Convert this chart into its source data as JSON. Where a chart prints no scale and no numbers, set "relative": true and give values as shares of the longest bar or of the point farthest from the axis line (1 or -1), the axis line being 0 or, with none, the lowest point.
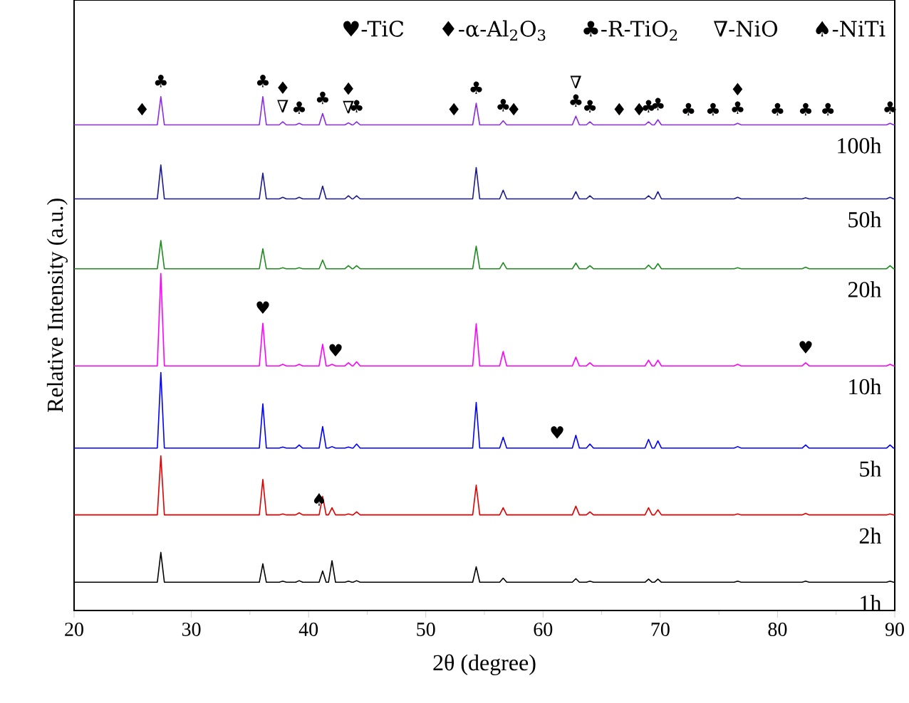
{
  "chart_data": {
    "type": "line",
    "relative": true,
    "marker": "none",
    "xlabel": "2θ (degree)",
    "ylabel": "Relative Intensity (a.u.)",
    "xlim": [
      20,
      90
    ],
    "xticks": [
      20,
      30,
      40,
      50,
      60,
      70,
      80,
      90
    ],
    "x": [
      20,
      27.1,
      27.4,
      27.7,
      35.8,
      36.1,
      36.4,
      37.5,
      37.8,
      38.1,
      38.9,
      39.2,
      39.5,
      40.9,
      41.2,
      41.5,
      41.7,
      42.0,
      42.3,
      43.1,
      43.4,
      43.7,
      43.8,
      44.1,
      44.4,
      54.0,
      54.3,
      54.6,
      56.3,
      56.6,
      56.9,
      62.5,
      62.8,
      63.1,
      63.7,
      64.0,
      64.3,
      68.7,
      69.0,
      69.3,
      69.5,
      69.8,
      70.1,
      76.3,
      76.6,
      76.9,
      82.1,
      82.4,
      82.7,
      89.3,
      89.6,
      89.9,
      90
    ],
    "series": [
      {
        "name": "100h",
        "color": "#8a2be2",
        "values": [
          0.945,
          0.945,
          1.0,
          0.945,
          0.945,
          1.0,
          0.945,
          0.945,
          0.951,
          0.945,
          0.945,
          0.948,
          0.945,
          0.945,
          0.967,
          0.945,
          0.945,
          0.945,
          0.945,
          0.945,
          0.949,
          0.945,
          0.945,
          0.951,
          0.945,
          0.945,
          0.987,
          0.945,
          0.945,
          0.953,
          0.945,
          0.945,
          0.962,
          0.945,
          0.945,
          0.951,
          0.945,
          0.945,
          0.951,
          0.945,
          0.945,
          0.955,
          0.945,
          0.945,
          0.948,
          0.945,
          0.945,
          0.945,
          0.945,
          0.945,
          0.948,
          0.945,
          0.945
        ]
      },
      {
        "name": "50h",
        "color": "#1a1a8c",
        "values": [
          0.801,
          0.801,
          0.867,
          0.801,
          0.801,
          0.851,
          0.801,
          0.801,
          0.804,
          0.801,
          0.801,
          0.804,
          0.801,
          0.801,
          0.826,
          0.801,
          0.801,
          0.801,
          0.801,
          0.801,
          0.807,
          0.801,
          0.801,
          0.807,
          0.801,
          0.801,
          0.862,
          0.801,
          0.801,
          0.818,
          0.801,
          0.801,
          0.815,
          0.801,
          0.801,
          0.807,
          0.801,
          0.801,
          0.807,
          0.801,
          0.801,
          0.815,
          0.801,
          0.801,
          0.804,
          0.801,
          0.801,
          0.803,
          0.801,
          0.801,
          0.804,
          0.801,
          0.801
        ]
      },
      {
        "name": "20h",
        "color": "#1e8b1e",
        "values": [
          0.665,
          0.665,
          0.72,
          0.665,
          0.665,
          0.704,
          0.665,
          0.665,
          0.667,
          0.665,
          0.665,
          0.667,
          0.665,
          0.665,
          0.682,
          0.665,
          0.665,
          0.665,
          0.665,
          0.665,
          0.671,
          0.665,
          0.665,
          0.671,
          0.665,
          0.665,
          0.709,
          0.665,
          0.665,
          0.677,
          0.665,
          0.665,
          0.676,
          0.665,
          0.665,
          0.671,
          0.665,
          0.665,
          0.672,
          0.665,
          0.665,
          0.675,
          0.665,
          0.665,
          0.667,
          0.665,
          0.665,
          0.668,
          0.665,
          0.665,
          0.671,
          0.665,
          0.665
        ]
      },
      {
        "name": "10h",
        "color": "#ff00ff",
        "values": [
          0.476,
          0.476,
          0.656,
          0.476,
          0.476,
          0.559,
          0.476,
          0.476,
          0.479,
          0.476,
          0.476,
          0.479,
          0.476,
          0.476,
          0.518,
          0.476,
          0.476,
          0.479,
          0.476,
          0.476,
          0.482,
          0.476,
          0.476,
          0.484,
          0.476,
          0.476,
          0.558,
          0.476,
          0.476,
          0.504,
          0.476,
          0.476,
          0.493,
          0.476,
          0.476,
          0.482,
          0.476,
          0.476,
          0.487,
          0.476,
          0.476,
          0.487,
          0.476,
          0.476,
          0.479,
          0.476,
          0.476,
          0.482,
          0.476,
          0.476,
          0.479,
          0.476,
          0.476
        ]
      },
      {
        "name": "5h",
        "color": "#0000ff",
        "values": [
          0.316,
          0.316,
          0.463,
          0.316,
          0.316,
          0.402,
          0.316,
          0.316,
          0.318,
          0.316,
          0.316,
          0.322,
          0.316,
          0.316,
          0.358,
          0.316,
          0.316,
          0.319,
          0.316,
          0.316,
          0.318,
          0.316,
          0.316,
          0.324,
          0.316,
          0.316,
          0.405,
          0.316,
          0.316,
          0.337,
          0.316,
          0.316,
          0.341,
          0.316,
          0.316,
          0.324,
          0.316,
          0.316,
          0.333,
          0.316,
          0.316,
          0.33,
          0.316,
          0.316,
          0.319,
          0.316,
          0.316,
          0.322,
          0.316,
          0.316,
          0.322,
          0.316,
          0.316
        ]
      },
      {
        "name": "2h",
        "color": "#e00000",
        "values": [
          0.186,
          0.186,
          0.301,
          0.186,
          0.186,
          0.255,
          0.186,
          0.186,
          0.188,
          0.186,
          0.186,
          0.19,
          0.186,
          0.186,
          0.222,
          0.186,
          0.186,
          0.2,
          0.186,
          0.186,
          0.188,
          0.186,
          0.186,
          0.192,
          0.186,
          0.186,
          0.244,
          0.186,
          0.186,
          0.2,
          0.186,
          0.186,
          0.203,
          0.186,
          0.186,
          0.192,
          0.186,
          0.186,
          0.2,
          0.186,
          0.186,
          0.196,
          0.186,
          0.186,
          0.188,
          0.186,
          0.186,
          0.189,
          0.186,
          0.186,
          0.188,
          0.186,
          0.186
        ]
      },
      {
        "name": "1h",
        "color": "#000000",
        "values": [
          0.055,
          0.055,
          0.113,
          0.055,
          0.055,
          0.091,
          0.055,
          0.055,
          0.057,
          0.055,
          0.055,
          0.058,
          0.055,
          0.055,
          0.077,
          0.055,
          0.055,
          0.097,
          0.055,
          0.055,
          0.057,
          0.055,
          0.055,
          0.058,
          0.055,
          0.055,
          0.085,
          0.055,
          0.055,
          0.063,
          0.055,
          0.055,
          0.062,
          0.055,
          0.055,
          0.057,
          0.055,
          0.055,
          0.061,
          0.055,
          0.055,
          0.061,
          0.055,
          0.055,
          0.057,
          0.055,
          0.055,
          0.057,
          0.055,
          0.055,
          0.057,
          0.055,
          0.055
        ]
      }
    ],
    "annotations": [
      "♥-TiC",
      "♦-α-Al$_{2}$O$_{3}$",
      "♣-R-TiO$_{2}$",
      "∇-NiO",
      "♠-NiTi",
      {
        "text": "♦",
        "x": 25.8,
        "y": 0.945
      },
      {
        "text": "♣",
        "x": 27.4,
        "y": 1.0
      },
      {
        "text": "♣",
        "x": 36.1,
        "y": 1.0
      },
      {
        "text": "∇",
        "x": 37.8,
        "y": 0.951
      },
      {
        "text": "♦",
        "x": 37.8,
        "y": 0.951
      },
      {
        "text": "♣",
        "x": 39.2,
        "y": 0.948
      },
      {
        "text": "♣",
        "x": 41.2,
        "y": 0.967
      },
      {
        "text": "∇",
        "x": 43.4,
        "y": 0.949
      },
      {
        "text": "♦",
        "x": 43.4,
        "y": 0.949
      },
      {
        "text": "♣",
        "x": 44.1,
        "y": 0.951
      },
      {
        "text": "♦",
        "x": 52.4,
        "y": 0.945
      },
      {
        "text": "♣",
        "x": 54.3,
        "y": 0.987
      },
      {
        "text": "♣",
        "x": 56.6,
        "y": 0.953
      },
      {
        "text": "♦",
        "x": 57.5,
        "y": 0.945
      },
      {
        "text": "♣",
        "x": 62.8,
        "y": 0.962
      },
      {
        "text": "∇",
        "x": 62.8,
        "y": 0.962
      },
      {
        "text": "♣",
        "x": 64.0,
        "y": 0.951
      },
      {
        "text": "♦",
        "x": 66.5,
        "y": 0.945
      },
      {
        "text": "♦",
        "x": 68.2,
        "y": 0.945
      },
      {
        "text": "♣",
        "x": 69.0,
        "y": 0.951
      },
      {
        "text": "♣",
        "x": 69.8,
        "y": 0.955
      },
      {
        "text": "♣",
        "x": 72.4,
        "y": 0.945
      },
      {
        "text": "♣",
        "x": 74.5,
        "y": 0.945
      },
      {
        "text": "♣",
        "x": 76.6,
        "y": 0.948
      },
      {
        "text": "♦",
        "x": 76.6,
        "y": 0.948
      },
      {
        "text": "♣",
        "x": 80.0,
        "y": 0.945
      },
      {
        "text": "♣",
        "x": 82.4,
        "y": 0.945
      },
      {
        "text": "♣",
        "x": 84.3,
        "y": 0.945
      },
      {
        "text": "♣",
        "x": 89.6,
        "y": 0.948
      },
      {
        "text": "♥",
        "x": 36.1,
        "y": 0.559
      },
      {
        "text": "♥",
        "x": 42.3,
        "y": 0.476
      },
      {
        "text": "♥",
        "x": 82.4,
        "y": 0.482
      },
      {
        "text": "♥",
        "x": 61.2,
        "y": 0.316
      },
      {
        "text": "♠",
        "x": 40.9,
        "y": 0.186
      }
    ]
  }
}
